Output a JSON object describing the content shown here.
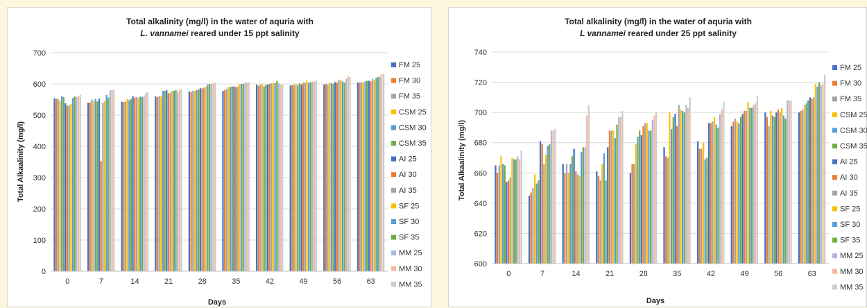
{
  "series_colors": [
    "#4472c4",
    "#ed7d31",
    "#a5a5a5",
    "#ffc000",
    "#5b9bd5",
    "#70ad47",
    "#4472c4",
    "#ed7d31",
    "#a5a5a5",
    "#ffc000",
    "#5b9bd5",
    "#70ad47",
    "#a9b9de",
    "#f5b99a",
    "#cccccc"
  ],
  "chart_data": [
    {
      "type": "bar",
      "title_line1": "Total alkalinity (mg/l) in the water of aquria with",
      "title_line2_italic": "L. vannamei",
      "title_line2_rest": " reared under 15 ppt salinity",
      "xlabel": "Days",
      "ylabel": "Total Alkaalinity (mg/l)",
      "ylim": [
        0,
        700
      ],
      "yticks": [
        "0",
        "100",
        "200",
        "300",
        "400",
        "500",
        "600",
        "700"
      ],
      "grid": true,
      "legend": "right",
      "categories": [
        "0",
        "7",
        "14",
        "21",
        "28",
        "35",
        "42",
        "49",
        "56",
        "63"
      ],
      "series": [
        {
          "name": "FM 25",
          "values": [
            554,
            540,
            543,
            560,
            576,
            578,
            598,
            595,
            598,
            605
          ]
        },
        {
          "name": "FM 30",
          "values": [
            552,
            541,
            542,
            558,
            574,
            580,
            594,
            596,
            600,
            604
          ]
        },
        {
          "name": "FM 35",
          "values": [
            551,
            550,
            544,
            561,
            578,
            584,
            598,
            598,
            598,
            606
          ]
        },
        {
          "name": "CSM 25",
          "values": [
            545,
            545,
            552,
            560,
            578,
            590,
            600,
            600,
            604,
            604
          ]
        },
        {
          "name": "CSM 30",
          "values": [
            560,
            552,
            548,
            578,
            580,
            590,
            592,
            596,
            602,
            608
          ]
        },
        {
          "name": "CSM 35",
          "values": [
            558,
            544,
            552,
            578,
            582,
            592,
            598,
            602,
            600,
            610
          ]
        },
        {
          "name": "AI 25",
          "values": [
            538,
            553,
            560,
            580,
            586,
            592,
            598,
            598,
            606,
            610
          ]
        },
        {
          "name": "AI 30",
          "values": [
            530,
            352,
            556,
            570,
            586,
            590,
            600,
            604,
            604,
            608
          ]
        },
        {
          "name": "AI 35",
          "values": [
            532,
            540,
            558,
            572,
            588,
            592,
            602,
            604,
            612,
            616
          ]
        },
        {
          "name": "SF 25",
          "values": [
            536,
            545,
            556,
            578,
            592,
            600,
            604,
            610,
            614,
            612
          ]
        },
        {
          "name": "SF 30",
          "values": [
            555,
            565,
            560,
            578,
            598,
            600,
            602,
            604,
            608,
            620
          ]
        },
        {
          "name": "SF 35",
          "values": [
            560,
            556,
            558,
            580,
            600,
            600,
            610,
            606,
            604,
            622
          ]
        },
        {
          "name": "MM 25",
          "values": [
            558,
            580,
            560,
            574,
            600,
            604,
            602,
            606,
            616,
            624
          ]
        },
        {
          "name": "MM 30",
          "values": [
            562,
            580,
            570,
            580,
            602,
            604,
            598,
            608,
            624,
            632
          ]
        },
        {
          "name": "MM 35",
          "values": [
            565,
            582,
            574,
            584,
            604,
            606,
            598,
            610,
            622,
            632
          ]
        }
      ]
    },
    {
      "type": "bar",
      "title_line1": "Total alkalinity (mg/l) in the water of aquria with",
      "title_line2_italic": "L vannamei",
      "title_line2_rest": " reared under 25 ppt salinity",
      "xlabel": "Days",
      "ylabel": "Total Alkaalinity (mg/l)",
      "ylim": [
        600,
        740
      ],
      "yticks": [
        "600",
        "620",
        "640",
        "660",
        "680",
        "700",
        "720",
        "740"
      ],
      "grid": true,
      "legend": "right",
      "categories": [
        "0",
        "7",
        "14",
        "21",
        "28",
        "35",
        "42",
        "49",
        "56",
        "63"
      ],
      "series": [
        {
          "name": "FM 25",
          "values": [
            665,
            645,
            666,
            661,
            660,
            677,
            681,
            691,
            700,
            700
          ]
        },
        {
          "name": "FM 30",
          "values": [
            660,
            647,
            660,
            658,
            666,
            671,
            676,
            694,
            697,
            701
          ]
        },
        {
          "name": "FM 35",
          "values": [
            665,
            650,
            666,
            655,
            666,
            670,
            676,
            696,
            691,
            702
          ]
        },
        {
          "name": "CSM 25",
          "values": [
            671,
            659,
            660,
            666,
            679,
            700,
            680,
            694,
            701,
            705
          ]
        },
        {
          "name": "CSM 30",
          "values": [
            666,
            653,
            666,
            673,
            684,
            689,
            669,
            693,
            698,
            706
          ]
        },
        {
          "name": "CSM 35",
          "values": [
            665,
            655,
            671,
            655,
            688,
            697,
            670,
            697,
            697,
            708
          ]
        },
        {
          "name": "AI 25",
          "values": [
            654,
            681,
            676,
            677,
            685,
            699,
            693,
            699,
            700,
            710
          ]
        },
        {
          "name": "AI 30",
          "values": [
            655,
            679,
            661,
            688,
            691,
            691,
            693,
            701,
            702,
            709
          ]
        },
        {
          "name": "AI 35",
          "values": [
            657,
            666,
            659,
            688,
            693,
            705,
            694,
            701,
            700,
            710
          ]
        },
        {
          "name": "SF 25",
          "values": [
            670,
            672,
            658,
            688,
            693,
            702,
            697,
            707,
            703,
            719
          ]
        },
        {
          "name": "SF 30",
          "values": [
            669,
            678,
            674,
            683,
            688,
            701,
            692,
            703,
            698,
            717
          ]
        },
        {
          "name": "SF 35",
          "values": [
            669,
            679,
            677,
            692,
            688,
            700,
            690,
            703,
            696,
            720
          ]
        },
        {
          "name": "MM 25",
          "values": [
            671,
            688,
            677,
            697,
            695,
            705,
            699,
            705,
            708,
            718
          ]
        },
        {
          "name": "MM 30",
          "values": [
            669,
            688,
            698,
            697,
            698,
            703,
            702,
            706,
            708,
            719
          ]
        },
        {
          "name": "MM 35",
          "values": [
            675,
            689,
            705,
            701,
            700,
            710,
            707,
            711,
            708,
            725
          ]
        }
      ]
    }
  ]
}
